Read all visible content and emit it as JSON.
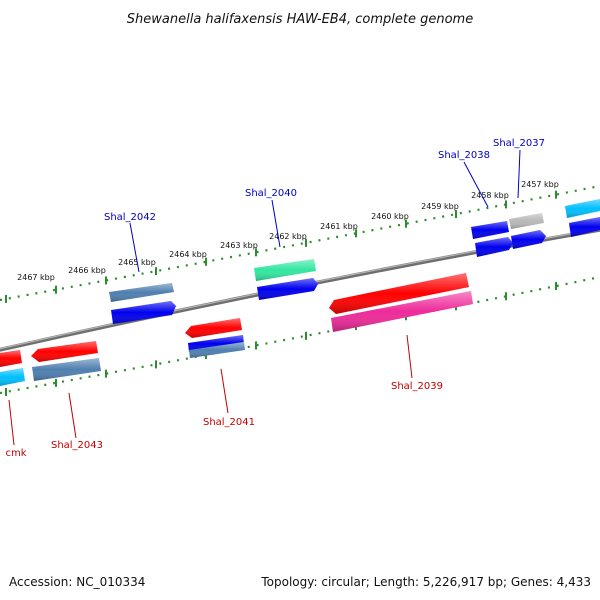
{
  "title": "Shewanella halifaxensis HAW-EB4, complete genome",
  "footer": {
    "accession": "Accession: NC_010334",
    "summary": "Topology: circular; Length: 5,226,917 bp; Genes: 4,433"
  },
  "ticks": [
    "2457 kbp",
    "2458 kbp",
    "2459 kbp",
    "2460 kbp",
    "2461 kbp",
    "2462 kbp",
    "2463 kbp",
    "2464 kbp",
    "2465 kbp",
    "2466 kbp",
    "2467 kbp"
  ],
  "gene_labels_forward": [
    "Shal_2037",
    "Shal_2038",
    "Shal_2040",
    "Shal_2042"
  ],
  "gene_labels_reverse": [
    "Shal_2039",
    "Shal_2041",
    "Shal_2043",
    "cmk"
  ],
  "colors": {
    "backbone": "#808080",
    "tick_marks": "#2e8b2e",
    "forward_label": "#0000c0",
    "reverse_label": "#c00000",
    "gene_red": "#ff0000",
    "gene_blue": "#0000ee",
    "gene_steelblue": "#4f7fb0",
    "gene_cyan": "#00bfff",
    "gene_green": "#33e6a0",
    "gene_magenta": "#ee2a9a",
    "gene_gray": "#b8b8b8"
  }
}
